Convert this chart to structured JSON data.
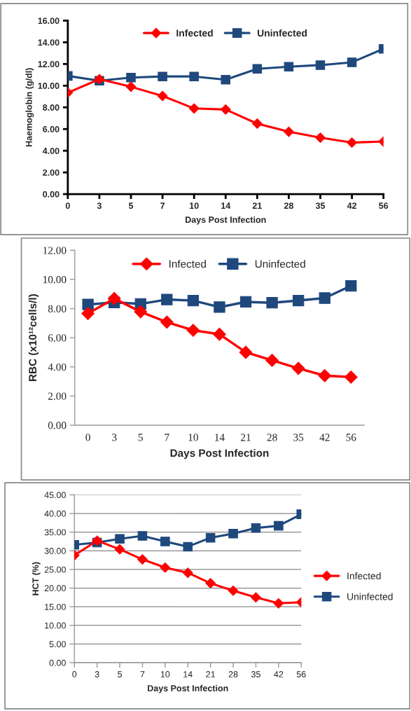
{
  "chart_data": [
    {
      "type": "line",
      "xlabel": "Days Post Infection",
      "ylabel": "Haemoglobin (g/dl)",
      "categories": [
        "0",
        "3",
        "5",
        "7",
        "10",
        "14",
        "21",
        "28",
        "35",
        "42",
        "56"
      ],
      "ylim": [
        0,
        16
      ],
      "yticks": [
        {
          "value": 0,
          "label": "0.00"
        },
        {
          "value": 2,
          "label": "2.00"
        },
        {
          "value": 4,
          "label": "4.00"
        },
        {
          "value": 6,
          "label": "6.00"
        },
        {
          "value": 8,
          "label": "8.00"
        },
        {
          "value": 10,
          "label": "10.00"
        },
        {
          "value": 12,
          "label": "12.00"
        },
        {
          "value": 14,
          "label": "14.00"
        },
        {
          "value": 16,
          "label": "16.00"
        }
      ],
      "grid": false,
      "legend": "top",
      "series": [
        {
          "name": "Infected",
          "color": "#ff0000",
          "marker": "diamond",
          "values": [
            9.35,
            10.6,
            9.9,
            9.05,
            7.9,
            7.8,
            6.5,
            5.75,
            5.2,
            4.75,
            4.85
          ]
        },
        {
          "name": "Uninfected",
          "color": "#1f497d",
          "marker": "square",
          "values": [
            10.9,
            10.45,
            10.75,
            10.85,
            10.85,
            10.55,
            11.55,
            11.75,
            11.9,
            12.15,
            13.4
          ]
        }
      ]
    },
    {
      "type": "line",
      "xlabel": "Days Post Infection",
      "ylabel": "RBC (x10¹²cells/l)",
      "categories": [
        "0",
        "3",
        "5",
        "7",
        "10",
        "14",
        "21",
        "28",
        "35",
        "42",
        "56"
      ],
      "ylim": [
        0,
        12
      ],
      "yticks": [
        {
          "value": 0,
          "label": "0.00"
        },
        {
          "value": 2,
          "label": "2.00"
        },
        {
          "value": 4,
          "label": "4.00"
        },
        {
          "value": 6,
          "label": "6.00"
        },
        {
          "value": 8,
          "label": "8.00"
        },
        {
          "value": 10,
          "label": "10.00"
        },
        {
          "value": 12,
          "label": "12.00"
        }
      ],
      "grid": false,
      "legend": "top",
      "series": [
        {
          "name": "Infected",
          "color": "#ff0000",
          "marker": "diamond",
          "values": [
            7.66,
            8.69,
            7.78,
            7.07,
            6.51,
            6.24,
            5.0,
            4.45,
            3.9,
            3.4,
            3.3
          ]
        },
        {
          "name": "Uninfected",
          "color": "#1f497d",
          "marker": "square",
          "values": [
            8.28,
            8.42,
            8.32,
            8.62,
            8.55,
            8.1,
            8.46,
            8.4,
            8.55,
            8.72,
            9.56
          ]
        }
      ]
    },
    {
      "type": "line",
      "xlabel": "Days Post Infection",
      "ylabel": "HCT (%)",
      "categories": [
        "0",
        "3",
        "5",
        "7",
        "10",
        "14",
        "21",
        "28",
        "35",
        "42",
        "56"
      ],
      "ylim": [
        0,
        45
      ],
      "yticks": [
        {
          "value": 0,
          "label": "0.00"
        },
        {
          "value": 5,
          "label": "5.00"
        },
        {
          "value": 10,
          "label": "10.00"
        },
        {
          "value": 15,
          "label": "15.00"
        },
        {
          "value": 20,
          "label": "20.00"
        },
        {
          "value": 25,
          "label": "25.00"
        },
        {
          "value": 30,
          "label": "30.00"
        },
        {
          "value": 35,
          "label": "35.00"
        },
        {
          "value": 40,
          "label": "40.00"
        },
        {
          "value": 45,
          "label": "45.00"
        }
      ],
      "grid": "y",
      "legend": "right",
      "series": [
        {
          "name": "Infected",
          "color": "#ff0000",
          "marker": "diamond",
          "values": [
            28.8,
            32.7,
            30.4,
            27.7,
            25.5,
            24.1,
            21.3,
            19.3,
            17.5,
            15.9,
            16.2
          ]
        },
        {
          "name": "Uninfected",
          "color": "#1f497d",
          "marker": "square",
          "values": [
            31.6,
            32.2,
            33.2,
            34.0,
            32.5,
            31.1,
            33.5,
            34.6,
            36.1,
            36.7,
            39.8
          ]
        }
      ]
    }
  ]
}
